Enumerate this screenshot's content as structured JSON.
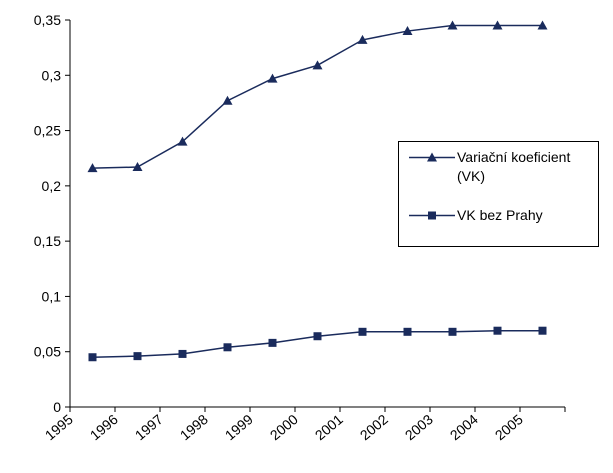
{
  "chart_data": {
    "type": "line",
    "categories": [
      "1995",
      "1996",
      "1997",
      "1998",
      "1999",
      "2000",
      "2001",
      "2002",
      "2003",
      "2004",
      "2005"
    ],
    "series": [
      {
        "name": "Variační koeficient (VK)",
        "color": "#1a2b5c",
        "marker": "triangle",
        "values": [
          0.216,
          0.217,
          0.24,
          0.277,
          0.297,
          0.309,
          0.332,
          0.34,
          0.345,
          0.345,
          0.345
        ]
      },
      {
        "name": "VK bez Prahy",
        "color": "#1a2b5c",
        "marker": "square",
        "values": [
          0.045,
          0.046,
          0.048,
          0.054,
          0.058,
          0.064,
          0.068,
          0.068,
          0.068,
          0.069,
          0.069
        ]
      }
    ],
    "ylim": [
      0,
      0.35
    ],
    "yticks": [
      0,
      {
        "value": 0.05,
        "label": "0,05"
      },
      {
        "value": 0.1,
        "label": "0,1"
      },
      {
        "value": 0.15,
        "label": "0,15"
      },
      {
        "value": 0.2,
        "label": "0,2"
      },
      {
        "value": 0.25,
        "label": "0,25"
      },
      {
        "value": 0.3,
        "label": "0,3"
      },
      {
        "value": 0.35,
        "label": "0,35"
      }
    ],
    "grid": false,
    "legend": "center right"
  }
}
